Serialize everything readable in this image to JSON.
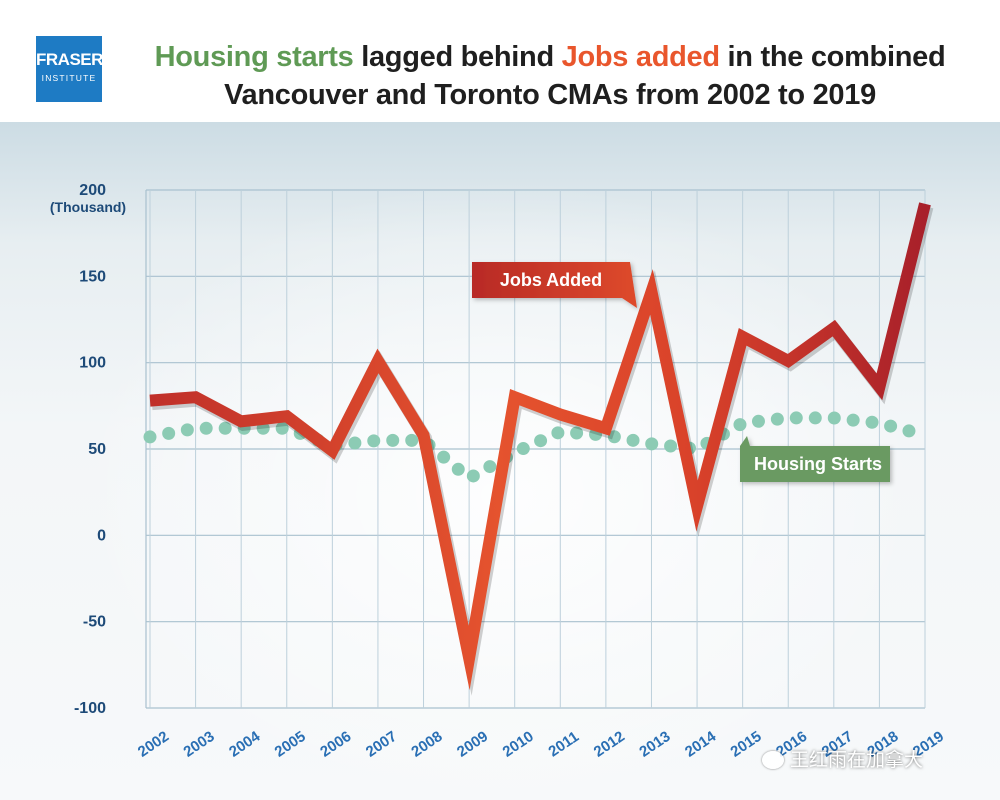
{
  "logo": {
    "line1": "FRASER",
    "line2": "INSTITUTE"
  },
  "title": {
    "part1": "Housing starts",
    "part2": " lagged behind ",
    "part3": "Jobs added",
    "part4": " in the combined",
    "line2": "Vancouver and Toronto CMAs from 2002 to 2019"
  },
  "colors": {
    "jobs": "#d73e26",
    "housing": "#8ccbb4",
    "title_green": "#5f9a55",
    "title_orange": "#e9562c",
    "axis_text": "#1d4a78",
    "xtick_text": "#2a6fb4",
    "jobs_label_bg": "#c93424",
    "housing_label_bg": "#6b9a62"
  },
  "chart_data": {
    "type": "line",
    "title": "Housing starts lagged behind Jobs added in the combined Vancouver and Toronto CMAs from 2002 to 2019",
    "y_unit": "(Thousand)",
    "ylim": [
      -100,
      200
    ],
    "yticks": [
      200,
      150,
      100,
      50,
      0,
      -50,
      -100
    ],
    "ytick_labels": [
      "200",
      "150",
      "100",
      "50",
      "0",
      "-50",
      "-100"
    ],
    "categories": [
      "2002",
      "2003",
      "2004",
      "2005",
      "2006",
      "2007",
      "2008",
      "2009",
      "2010",
      "2011",
      "2012",
      "2013",
      "2014",
      "2015",
      "2016",
      "2017",
      "2018",
      "2019"
    ],
    "grid": true,
    "series": [
      {
        "name": "Jobs Added",
        "values": [
          78,
          80,
          66,
          69,
          49,
          101,
          58,
          -71,
          80,
          70,
          62,
          141,
          17,
          115,
          101,
          120,
          86,
          192
        ]
      },
      {
        "name": "Housing Starts",
        "values": [
          57,
          62,
          62,
          62,
          52,
          55,
          55,
          33,
          48,
          60,
          58,
          53,
          50,
          65,
          68,
          68,
          65,
          58
        ]
      }
    ]
  },
  "watermark": "王红雨在加拿大"
}
